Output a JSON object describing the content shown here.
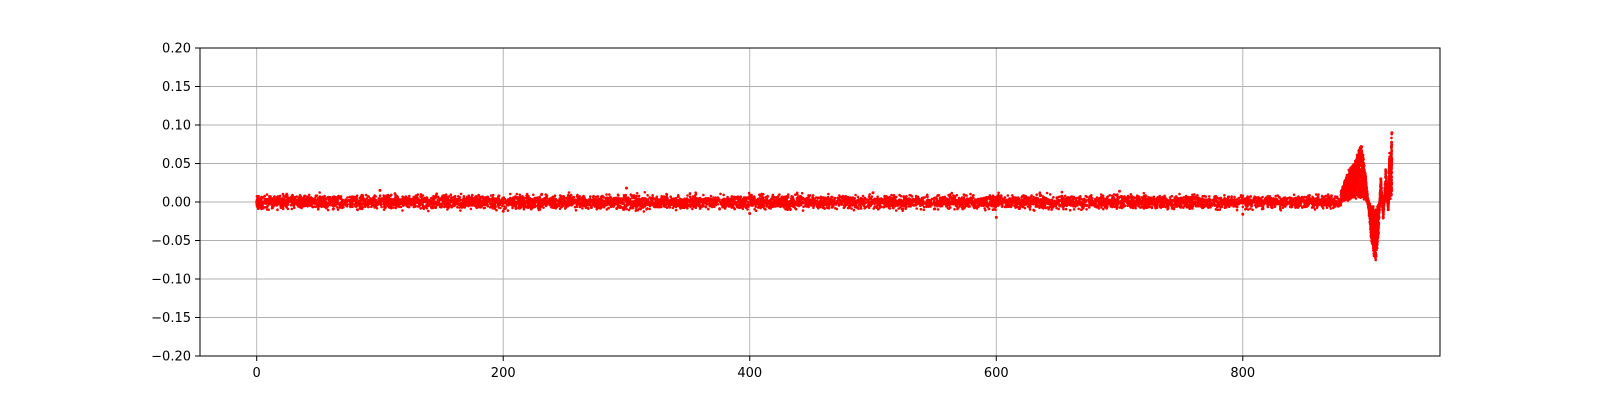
{
  "chart_data": {
    "type": "scatter",
    "title": "",
    "xlabel": "",
    "ylabel": "",
    "xlim": [
      -46,
      960
    ],
    "ylim": [
      -0.2,
      0.2
    ],
    "x_ticks": [
      0,
      200,
      400,
      600,
      800
    ],
    "x_tick_labels": [
      "0",
      "200",
      "400",
      "600",
      "800"
    ],
    "y_ticks": [
      -0.2,
      -0.15,
      -0.1,
      -0.05,
      0.0,
      0.05,
      0.1,
      0.15,
      0.2
    ],
    "y_tick_labels": [
      "−0.20",
      "−0.15",
      "−0.10",
      "−0.05",
      "0.00",
      "0.05",
      "0.10",
      "0.15",
      "0.20"
    ],
    "grid": true,
    "legend": "none",
    "marker_color": "#ff0000",
    "series": [
      {
        "noise_band": {
          "x_range": [
            0,
            880
          ],
          "y_range": [
            -0.02,
            0.02
          ]
        },
        "points": [
          [
            0,
            0.0
          ],
          [
            100,
            0.015
          ],
          [
            200,
            -0.012
          ],
          [
            300,
            0.018
          ],
          [
            400,
            -0.015
          ],
          [
            500,
            0.012
          ],
          [
            600,
            -0.02
          ],
          [
            700,
            0.014
          ],
          [
            800,
            -0.016
          ],
          [
            880,
            0.013
          ],
          [
            882,
            0.02
          ],
          [
            884,
            0.028
          ],
          [
            886,
            0.035
          ],
          [
            888,
            0.04
          ],
          [
            890,
            0.045
          ],
          [
            892,
            0.05
          ],
          [
            894,
            0.06
          ],
          [
            896,
            0.067
          ],
          [
            898,
            0.05
          ],
          [
            900,
            0.025
          ],
          [
            902,
            -0.005
          ],
          [
            904,
            -0.04
          ],
          [
            906,
            -0.06
          ],
          [
            908,
            -0.068
          ],
          [
            910,
            -0.04
          ],
          [
            912,
            0.03
          ],
          [
            914,
            -0.02
          ],
          [
            916,
            0.04
          ],
          [
            918,
            -0.01
          ],
          [
            919,
            0.056
          ],
          [
            920,
            0.045
          ],
          [
            921,
            0.09
          ]
        ]
      }
    ]
  }
}
